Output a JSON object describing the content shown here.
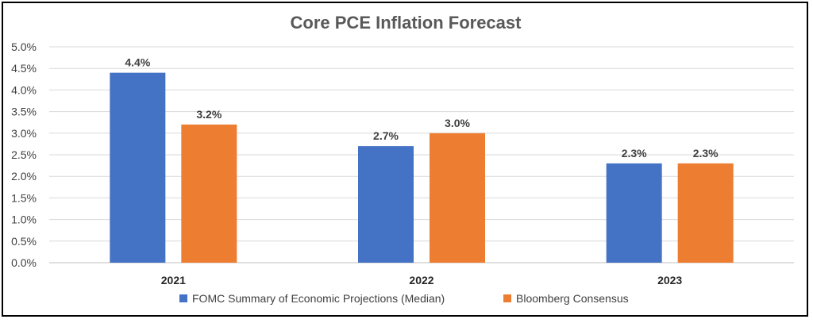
{
  "chart_data": {
    "type": "bar",
    "title": "Core PCE Inflation Forecast",
    "categories": [
      "2021",
      "2022",
      "2023"
    ],
    "series": [
      {
        "name": "FOMC Summary of Economic Projections (Median)",
        "values": [
          4.4,
          2.7,
          2.3
        ],
        "labels": [
          "4.4%",
          "2.7%",
          "2.3%"
        ],
        "color": "#4472C4"
      },
      {
        "name": "Bloomberg Consensus",
        "values": [
          3.2,
          3.0,
          2.3
        ],
        "labels": [
          "3.2%",
          "3.0%",
          "2.3%"
        ],
        "color": "#ED7D31"
      }
    ],
    "yticks": [
      "0.0%",
      "0.5%",
      "1.0%",
      "1.5%",
      "2.0%",
      "2.5%",
      "3.0%",
      "3.5%",
      "4.0%",
      "4.5%",
      "5.0%"
    ],
    "ylim": [
      0,
      5.0
    ],
    "grid": true,
    "legend_position": "bottom"
  }
}
